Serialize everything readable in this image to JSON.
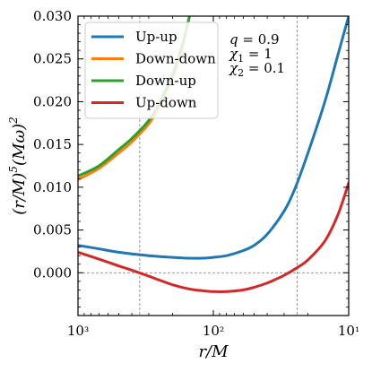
{
  "chart_data": {
    "type": "line",
    "title": "",
    "xlabel": "r/M",
    "ylabel": "(r/M)⁵(Mω)²",
    "x_scale": "log",
    "x_reversed": true,
    "xlim": [
      1000,
      10
    ],
    "ylim": [
      -0.005,
      0.03
    ],
    "x_ticks": [
      1000,
      100,
      10
    ],
    "x_tick_labels": [
      "10³",
      "10²",
      "10¹"
    ],
    "y_ticks": [
      -0.005,
      0.0,
      0.005,
      0.01,
      0.015,
      0.02,
      0.025,
      0.03
    ],
    "y_tick_labels": [
      "",
      "0.000",
      "0.005",
      "0.010",
      "0.015",
      "0.020",
      "0.025",
      "0.030"
    ],
    "legend_position": "top-left",
    "series": [
      {
        "name": "Up-up",
        "color": "#1f77b4",
        "x": [
          1000,
          700,
          500,
          300,
          200,
          150,
          120,
          100,
          80,
          60,
          50,
          40,
          30,
          25,
          20,
          15,
          12,
          10
        ],
        "y": [
          0.0032,
          0.0028,
          0.0024,
          0.002,
          0.0018,
          0.0017,
          0.0017,
          0.0018,
          0.002,
          0.0026,
          0.0032,
          0.0045,
          0.0072,
          0.0098,
          0.014,
          0.02,
          0.0255,
          0.03
        ]
      },
      {
        "name": "Down-down",
        "color": "#ff7f0e",
        "x": [
          1000,
          700,
          500,
          400,
          300,
          250,
          200,
          170,
          150
        ],
        "y": [
          0.0109,
          0.0122,
          0.014,
          0.0153,
          0.0174,
          0.0195,
          0.0228,
          0.0262,
          0.03
        ]
      },
      {
        "name": "Down-up",
        "color": "#2ca02c",
        "x": [
          1000,
          700,
          500,
          400,
          300,
          250,
          200,
          170,
          150
        ],
        "y": [
          0.0113,
          0.0125,
          0.0144,
          0.0157,
          0.0178,
          0.0199,
          0.0232,
          0.0266,
          0.03
        ]
      },
      {
        "name": "Up-down",
        "color": "#d62728",
        "x": [
          1000,
          700,
          500,
          400,
          300,
          200,
          150,
          120,
          100,
          80,
          60,
          50,
          40,
          35,
          30,
          24,
          20,
          15,
          12,
          10
        ],
        "y": [
          0.0024,
          0.0016,
          0.0008,
          0.0003,
          -0.0004,
          -0.0014,
          -0.0019,
          -0.0021,
          -0.0022,
          -0.0022,
          -0.002,
          -0.0017,
          -0.0012,
          -0.0008,
          -0.0003,
          0.0006,
          0.0015,
          0.0037,
          0.0068,
          0.0105
        ]
      }
    ],
    "reference_lines": {
      "vertical_x": [
        350,
        24
      ],
      "horizontal_y": [
        0.0
      ]
    },
    "annotations": [
      {
        "var": "q",
        "sub": "",
        "value": "= 0.9"
      },
      {
        "var": "χ",
        "sub": "1",
        "value": "= 1"
      },
      {
        "var": "χ",
        "sub": "2",
        "value": "= 0.1"
      }
    ]
  }
}
